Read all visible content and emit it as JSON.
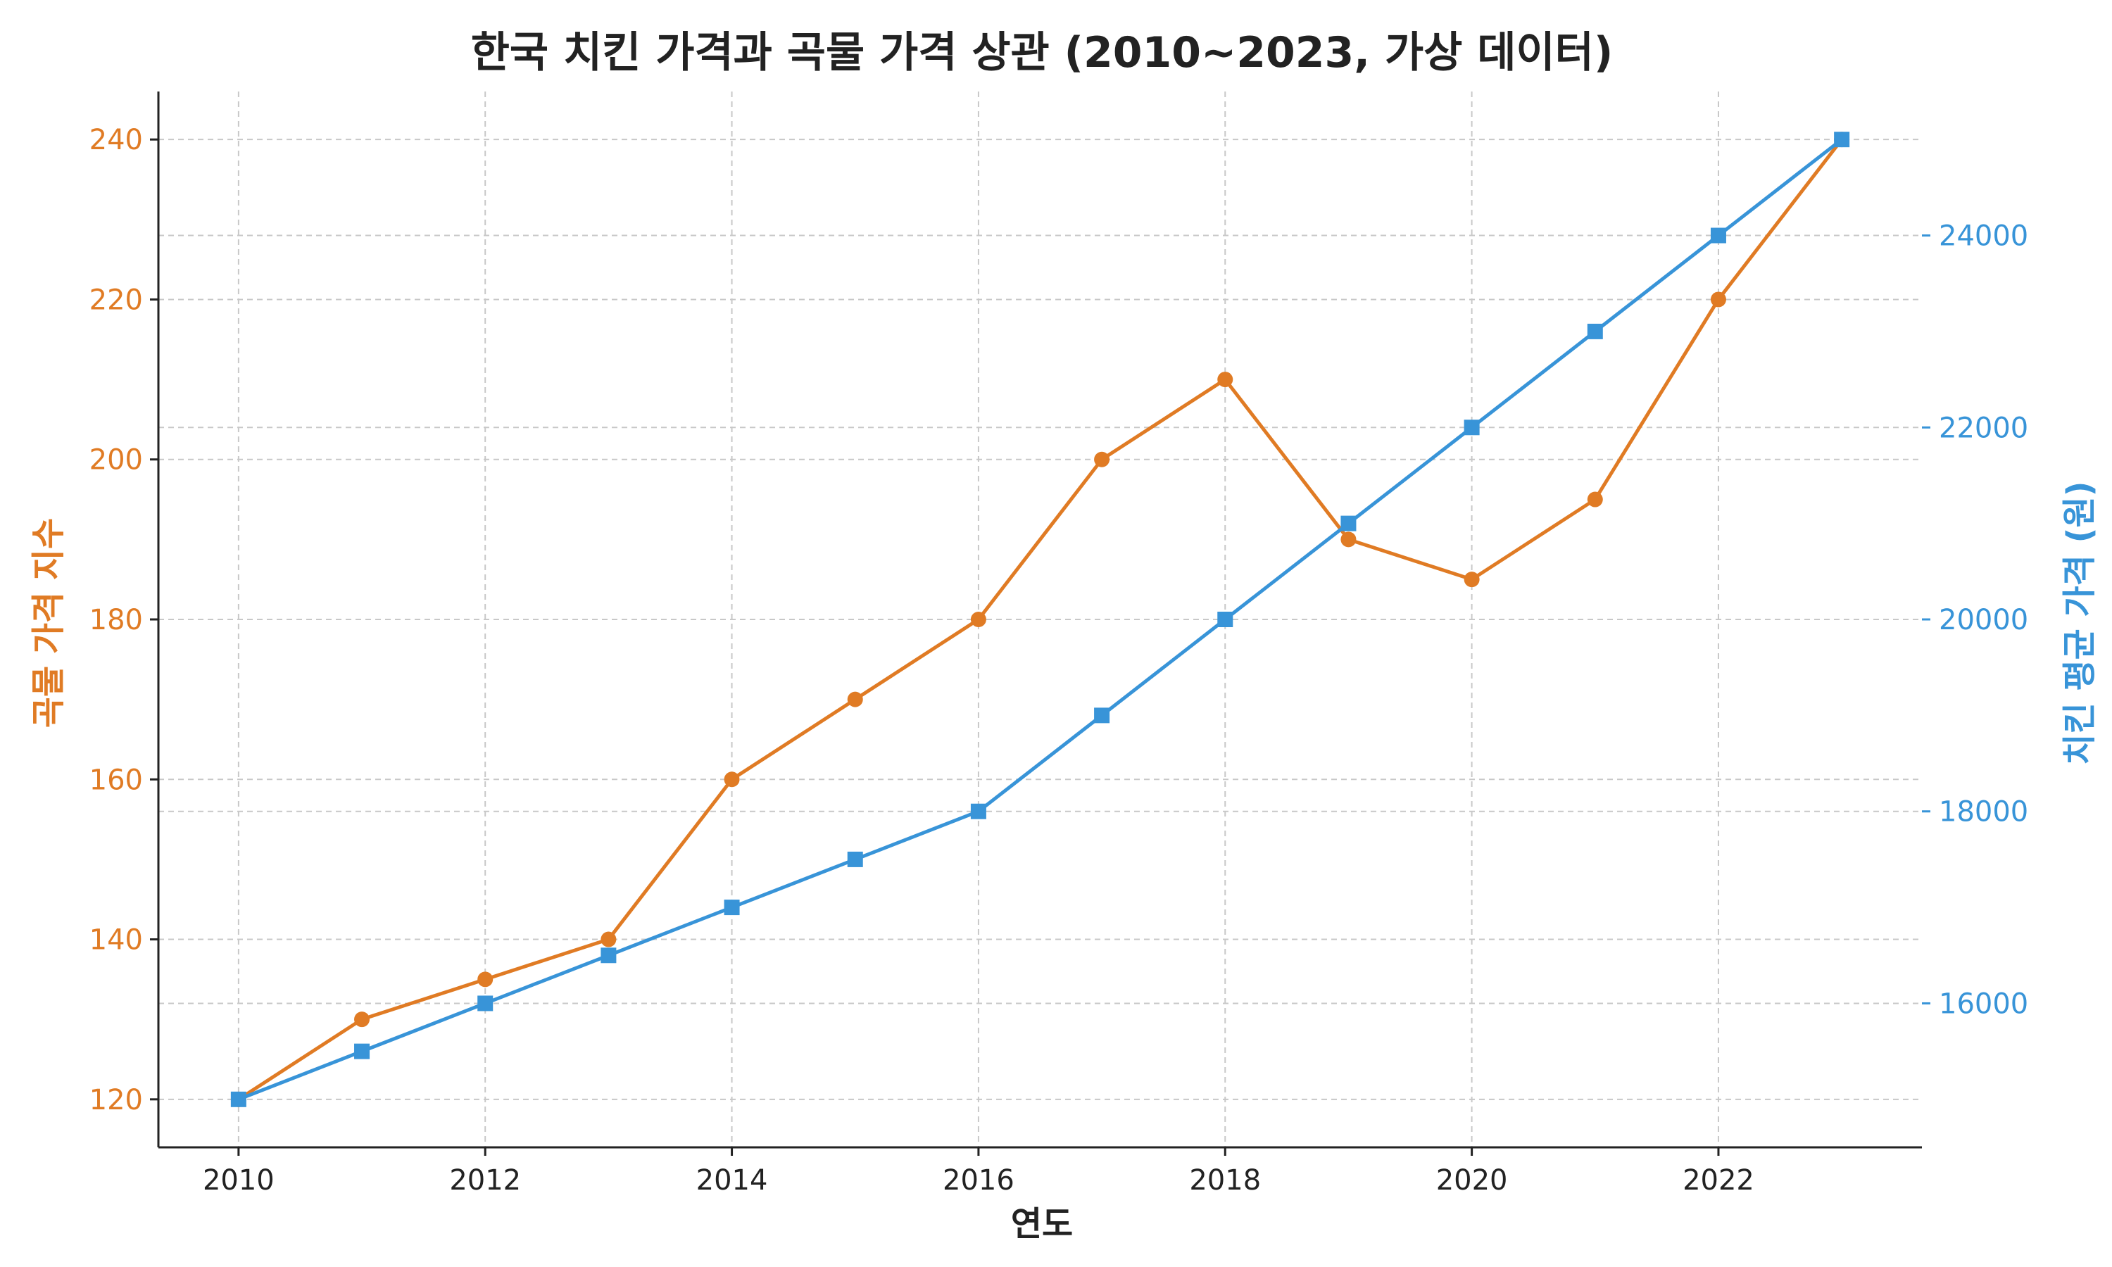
{
  "chart_data": {
    "type": "line",
    "title": "한국 치킨 가격과 곡물 가격 상관 (2010~2023, 가상 데이터)",
    "xlabel": "연도",
    "ylabel_left": "곡물 가격 지수",
    "ylabel_right": "치킨 평균 가격 (원)",
    "x": [
      2010,
      2011,
      2012,
      2013,
      2014,
      2015,
      2016,
      2017,
      2018,
      2019,
      2020,
      2021,
      2022,
      2023
    ],
    "x_ticks": [
      "2010",
      "2012",
      "2014",
      "2016",
      "2018",
      "2020",
      "2022"
    ],
    "y_left_ticks": [
      "120",
      "140",
      "160",
      "180",
      "200",
      "220",
      "240"
    ],
    "y_right_ticks": [
      "16000",
      "18000",
      "20000",
      "22000",
      "24000"
    ],
    "xlim": [
      2009.35,
      2023.65
    ],
    "ylim_left": [
      114,
      246
    ],
    "ylim_right": [
      14500,
      25500
    ],
    "grid": true,
    "series": [
      {
        "name": "곡물 가격 지수",
        "axis": "left",
        "color": "#e07b24",
        "marker": "circle",
        "values": [
          120,
          130,
          135,
          140,
          160,
          170,
          180,
          200,
          210,
          190,
          185,
          195,
          220,
          240
        ]
      },
      {
        "name": "치킨 평균 가격 (원)",
        "axis": "right",
        "color": "#3894d8",
        "marker": "square",
        "values": [
          15000,
          15500,
          16000,
          16500,
          17000,
          17500,
          18000,
          19000,
          20000,
          21000,
          22000,
          23000,
          24000,
          25000
        ]
      }
    ]
  }
}
